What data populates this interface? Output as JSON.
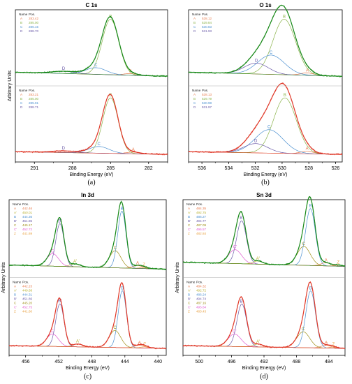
{
  "chart_data": [
    {
      "id": "a",
      "type": "line",
      "title": "C 1s",
      "panel_label": "(a)",
      "xlabel": "Binding Energy (eV)",
      "ylabel": "Arbitrary Units",
      "xlim": [
        292.5,
        280.5
      ],
      "xticks": [
        291,
        288,
        285,
        282
      ],
      "legend_header": [
        "Name",
        "Pos."
      ],
      "colors": {
        "raw": "#1a8a1a",
        "raw_bottom": "#e03a2a",
        "fit": "#1a8a1a",
        "fit_bottom": "#e03a2a"
      },
      "spectra": [
        {
          "position": "top",
          "raw_color": "#1a8a1a",
          "baseline": 0.08,
          "components": [
            {
              "name": "A",
              "pos": 283.42,
              "amp": 0.03,
              "width": 0.55,
              "color": "#e8794a"
            },
            {
              "name": "B",
              "pos": 285.0,
              "amp": 1.0,
              "width": 0.65,
              "color": "#8ab34a"
            },
            {
              "name": "C",
              "pos": 286.15,
              "amp": 0.12,
              "width": 0.8,
              "color": "#4a8fd0"
            },
            {
              "name": "D",
              "pos": 288.7,
              "amp": 0.04,
              "width": 0.9,
              "color": "#6a5aa8"
            }
          ],
          "legend": [
            {
              "name": "A",
              "pos": "283.42"
            },
            {
              "name": "B",
              "pos": "285.00"
            },
            {
              "name": "C",
              "pos": "286.15"
            },
            {
              "name": "D",
              "pos": "288.70"
            }
          ]
        },
        {
          "position": "bottom",
          "raw_color": "#e03a2a",
          "baseline": 0.05,
          "components": [
            {
              "name": "A",
              "pos": 283.21,
              "amp": 0.03,
              "width": 0.55,
              "color": "#e8794a"
            },
            {
              "name": "B",
              "pos": 285.0,
              "amp": 1.0,
              "width": 0.6,
              "color": "#8ab34a"
            },
            {
              "name": "C",
              "pos": 285.91,
              "amp": 0.12,
              "width": 0.8,
              "color": "#4a8fd0"
            },
            {
              "name": "D",
              "pos": 288.71,
              "amp": 0.03,
              "width": 0.9,
              "color": "#6a5aa8"
            }
          ],
          "legend": [
            {
              "name": "A",
              "pos": "283.21"
            },
            {
              "name": "B",
              "pos": "285.00"
            },
            {
              "name": "C",
              "pos": "285.91"
            },
            {
              "name": "D",
              "pos": "288.71"
            }
          ]
        }
      ]
    },
    {
      "id": "b",
      "type": "line",
      "title": "O 1s",
      "panel_label": "(b)",
      "xlabel": "Binding Energy (eV)",
      "ylabel": "",
      "xlim": [
        537,
        525.5
      ],
      "xticks": [
        536,
        534,
        532,
        530,
        528,
        526
      ],
      "legend_header": [
        "Name",
        "Pos."
      ],
      "spectra": [
        {
          "position": "top",
          "raw_color": "#1a8a1a",
          "baseline": 0.08,
          "components": [
            {
              "name": "A",
              "pos": 528.12,
              "amp": 0.04,
              "width": 0.5,
              "color": "#e8794a"
            },
            {
              "name": "B",
              "pos": 529.84,
              "amp": 0.92,
              "width": 0.85,
              "color": "#8ab34a"
            },
            {
              "name": "C",
              "pos": 530.83,
              "amp": 0.32,
              "width": 1.0,
              "color": "#4a8fd0"
            },
            {
              "name": "D",
              "pos": 531.93,
              "amp": 0.18,
              "width": 0.9,
              "color": "#6a5aa8"
            }
          ],
          "legend": [
            {
              "name": "A",
              "pos": "528.12"
            },
            {
              "name": "B",
              "pos": "529.84"
            },
            {
              "name": "C",
              "pos": "530.83"
            },
            {
              "name": "D",
              "pos": "531.93"
            }
          ]
        },
        {
          "position": "bottom",
          "raw_color": "#e03a2a",
          "baseline": 0.05,
          "components": [
            {
              "name": "A",
              "pos": 528.13,
              "amp": 0.04,
              "width": 0.5,
              "color": "#e8794a"
            },
            {
              "name": "B",
              "pos": 529.79,
              "amp": 0.9,
              "width": 0.85,
              "color": "#8ab34a"
            },
            {
              "name": "C",
              "pos": 530.98,
              "amp": 0.38,
              "width": 1.05,
              "color": "#4a8fd0"
            },
            {
              "name": "D",
              "pos": 531.97,
              "amp": 0.15,
              "width": 0.9,
              "color": "#6a5aa8"
            }
          ],
          "legend": [
            {
              "name": "A",
              "pos": "528.13"
            },
            {
              "name": "B",
              "pos": "529.79"
            },
            {
              "name": "C",
              "pos": "530.98"
            },
            {
              "name": "D",
              "pos": "531.97"
            }
          ]
        }
      ]
    },
    {
      "id": "c",
      "type": "line",
      "title": "In 3d",
      "panel_label": "(c)",
      "xlabel": "Binding Energy (eV)",
      "ylabel": "Arbitrary Units",
      "xlim": [
        458,
        439
      ],
      "xticks": [
        456,
        452,
        448,
        444,
        440
      ],
      "legend_header": [
        "Name",
        "Pos."
      ],
      "spectra": [
        {
          "position": "top",
          "raw_color": "#1a8a1a",
          "baseline": 0.06,
          "components": [
            {
              "name": "A",
              "pos": 442.46,
              "amp": 0.05,
              "width": 0.6,
              "color": "#e8794a"
            },
            {
              "name": "A'",
              "pos": 450.01,
              "amp": 0.05,
              "width": 0.6,
              "color": "#b8b030"
            },
            {
              "name": "B",
              "pos": 444.36,
              "amp": 1.0,
              "width": 0.5,
              "color": "#4a8fd0"
            },
            {
              "name": "B'",
              "pos": 451.85,
              "amp": 0.75,
              "width": 0.5,
              "color": "#6a5aa8"
            },
            {
              "name": "C",
              "pos": 445.17,
              "amp": 0.3,
              "width": 0.7,
              "color": "#a0901a"
            },
            {
              "name": "C'",
              "pos": 452.72,
              "amp": 0.22,
              "width": 0.7,
              "color": "#e05ad0"
            },
            {
              "name": "Z",
              "pos": 441.69,
              "amp": 0.02,
              "width": 0.5,
              "color": "#e8a040"
            }
          ],
          "legend": [
            {
              "name": "A",
              "pos": "442.46"
            },
            {
              "name": "A'",
              "pos": "450.01"
            },
            {
              "name": "B",
              "pos": "444.36"
            },
            {
              "name": "B'",
              "pos": "451.85"
            },
            {
              "name": "C",
              "pos": "445.17"
            },
            {
              "name": "C'",
              "pos": "452.72"
            },
            {
              "name": "Z",
              "pos": "441.69"
            }
          ]
        },
        {
          "position": "bottom",
          "raw_color": "#e03a2a",
          "baseline": 0.04,
          "components": [
            {
              "name": "A",
              "pos": 442.23,
              "amp": 0.05,
              "width": 0.6,
              "color": "#e8794a"
            },
            {
              "name": "A'",
              "pos": 449.68,
              "amp": 0.05,
              "width": 0.6,
              "color": "#b8b030"
            },
            {
              "name": "B",
              "pos": 444.31,
              "amp": 1.0,
              "width": 0.5,
              "color": "#4a8fd0"
            },
            {
              "name": "B'",
              "pos": 451.86,
              "amp": 0.75,
              "width": 0.5,
              "color": "#6a5aa8"
            },
            {
              "name": "C",
              "pos": 445.2,
              "amp": 0.3,
              "width": 0.7,
              "color": "#a0901a"
            },
            {
              "name": "C'",
              "pos": 452.75,
              "amp": 0.22,
              "width": 0.7,
              "color": "#e05ad0"
            },
            {
              "name": "Z",
              "pos": 441.6,
              "amp": 0.02,
              "width": 0.5,
              "color": "#e8a040"
            }
          ],
          "legend": [
            {
              "name": "A",
              "pos": "442.23"
            },
            {
              "name": "A'",
              "pos": "449.68"
            },
            {
              "name": "B",
              "pos": "444.31"
            },
            {
              "name": "B'",
              "pos": "451.86"
            },
            {
              "name": "C",
              "pos": "445.20"
            },
            {
              "name": "C'",
              "pos": "452.75"
            },
            {
              "name": "Z",
              "pos": "441.60"
            }
          ]
        }
      ]
    },
    {
      "id": "d",
      "type": "line",
      "title": "Sn 3d",
      "panel_label": "(d)",
      "xlabel": "Binding Energy (eV)",
      "ylabel": "Arbitrary Units",
      "xlim": [
        502,
        482
      ],
      "xticks": [
        500,
        496,
        492,
        488,
        484
      ],
      "legend_header": [
        "Name",
        "Pos."
      ],
      "spectra": [
        {
          "position": "top",
          "raw_color": "#1a8a1a",
          "baseline": 0.1,
          "components": [
            {
              "name": "A",
              "pos": 484.35,
              "amp": 0.05,
              "width": 0.6,
              "color": "#e8794a"
            },
            {
              "name": "A'",
              "pos": 492.75,
              "amp": 0.05,
              "width": 0.6,
              "color": "#b8b030"
            },
            {
              "name": "B",
              "pos": 486.27,
              "amp": 0.9,
              "width": 0.6,
              "color": "#4a8fd0"
            },
            {
              "name": "B'",
              "pos": 494.77,
              "amp": 0.68,
              "width": 0.6,
              "color": "#6a5aa8"
            },
            {
              "name": "C",
              "pos": 487.09,
              "amp": 0.3,
              "width": 0.8,
              "color": "#a0901a"
            },
            {
              "name": "C'",
              "pos": 495.57,
              "amp": 0.22,
              "width": 0.8,
              "color": "#e05ad0"
            },
            {
              "name": "Z",
              "pos": 482.84,
              "amp": 0.02,
              "width": 0.5,
              "color": "#e8a040"
            }
          ],
          "legend": [
            {
              "name": "A",
              "pos": "484.35"
            },
            {
              "name": "A'",
              "pos": "492.75"
            },
            {
              "name": "B",
              "pos": "486.27"
            },
            {
              "name": "B'",
              "pos": "494.77"
            },
            {
              "name": "C",
              "pos": "487.09"
            },
            {
              "name": "C'",
              "pos": "495.57"
            },
            {
              "name": "Z",
              "pos": "482.84"
            }
          ]
        },
        {
          "position": "bottom",
          "raw_color": "#e03a2a",
          "baseline": 0.04,
          "components": [
            {
              "name": "A",
              "pos": 484.32,
              "amp": 0.05,
              "width": 0.6,
              "color": "#e8794a"
            },
            {
              "name": "A'",
              "pos": 492.72,
              "amp": 0.05,
              "width": 0.6,
              "color": "#b8b030"
            },
            {
              "name": "B",
              "pos": 486.24,
              "amp": 1.0,
              "width": 0.6,
              "color": "#4a8fd0"
            },
            {
              "name": "B'",
              "pos": 494.74,
              "amp": 0.75,
              "width": 0.6,
              "color": "#6a5aa8"
            },
            {
              "name": "C",
              "pos": 487.16,
              "amp": 0.28,
              "width": 0.8,
              "color": "#a0901a"
            },
            {
              "name": "C'",
              "pos": 495.64,
              "amp": 0.22,
              "width": 0.8,
              "color": "#e05ad0"
            },
            {
              "name": "Z",
              "pos": 483.43,
              "amp": 0.02,
              "width": 0.5,
              "color": "#e8a040"
            }
          ],
          "legend": [
            {
              "name": "A",
              "pos": "484.32"
            },
            {
              "name": "A'",
              "pos": "492.72"
            },
            {
              "name": "B",
              "pos": "486.24"
            },
            {
              "name": "B'",
              "pos": "494.74"
            },
            {
              "name": "C",
              "pos": "487.16"
            },
            {
              "name": "C'",
              "pos": "495.64"
            },
            {
              "name": "Z",
              "pos": "483.43"
            }
          ]
        }
      ]
    }
  ]
}
